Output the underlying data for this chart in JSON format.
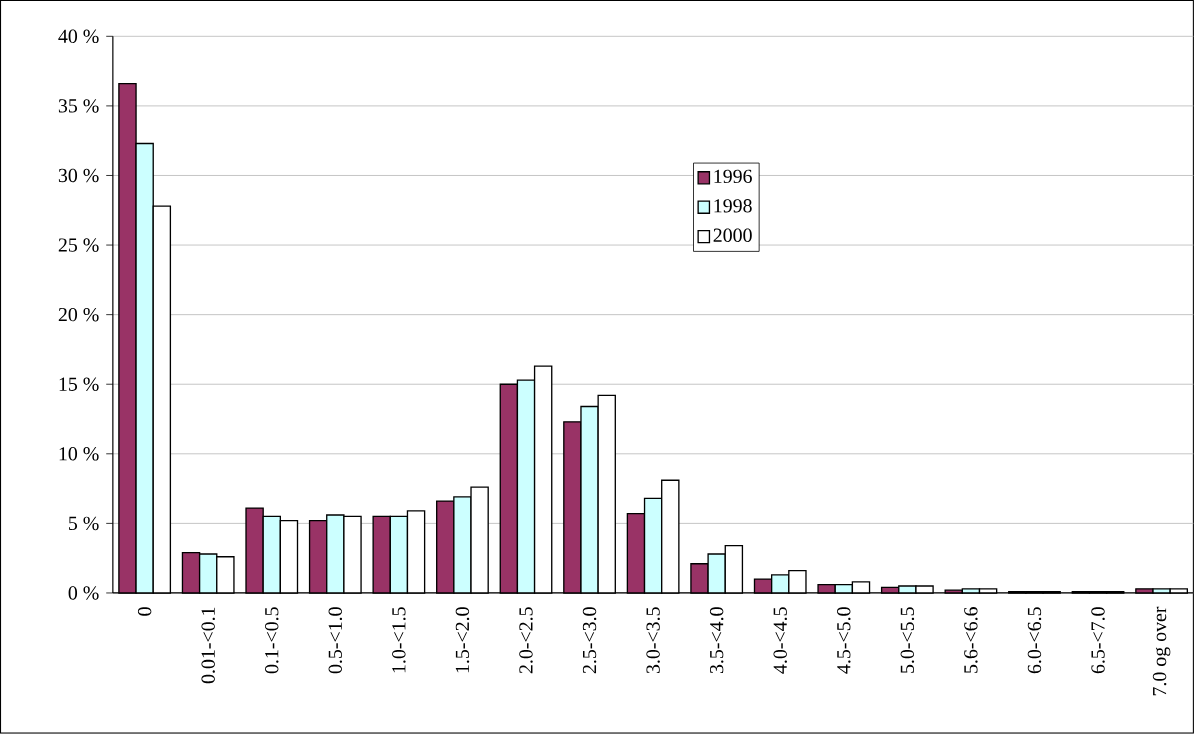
{
  "chart_data": {
    "type": "bar",
    "categories": [
      "0",
      "0.01-<0.1",
      "0.1-<0.5",
      "0.5-<1.0",
      "1.0-<1.5",
      "1.5-<2.0",
      "2.0-<2.5",
      "2.5-<3.0",
      "3.0-<3.5",
      "3.5-<4.0",
      "4.0-<4.5",
      "4.5-<5.0",
      "5.0-<5.5",
      "5.6-<6.6",
      "6.0-<6.5",
      "6.5-<7.0",
      "7.0 og over"
    ],
    "series": [
      {
        "name": "1996",
        "color": "#993366",
        "values": [
          36.6,
          2.9,
          6.1,
          5.2,
          5.5,
          6.6,
          15.0,
          12.3,
          5.7,
          2.1,
          1.0,
          0.6,
          0.4,
          0.2,
          0.1,
          0.1,
          0.3
        ]
      },
      {
        "name": "1998",
        "color": "#ccffff",
        "values": [
          32.3,
          2.8,
          5.5,
          5.6,
          5.5,
          6.9,
          15.3,
          13.4,
          6.8,
          2.8,
          1.3,
          0.6,
          0.5,
          0.3,
          0.1,
          0.1,
          0.3
        ]
      },
      {
        "name": "2000",
        "color": "#ffffff",
        "values": [
          27.8,
          2.6,
          5.2,
          5.5,
          5.9,
          7.6,
          16.3,
          14.2,
          8.1,
          3.4,
          1.6,
          0.8,
          0.5,
          0.3,
          0.1,
          0.1,
          0.3
        ]
      }
    ],
    "ylim": [
      0,
      40
    ],
    "yticks": [
      {
        "value": 0,
        "label": "0 %"
      },
      {
        "value": 5,
        "label": "5 %"
      },
      {
        "value": 10,
        "label": "10 %"
      },
      {
        "value": 15,
        "label": "15 %"
      },
      {
        "value": 20,
        "label": "20 %"
      },
      {
        "value": 25,
        "label": "25 %"
      },
      {
        "value": 30,
        "label": "30 %"
      },
      {
        "value": 35,
        "label": "35 %"
      },
      {
        "value": 40,
        "label": "40 %"
      }
    ],
    "grid": "y",
    "legend": "top"
  }
}
